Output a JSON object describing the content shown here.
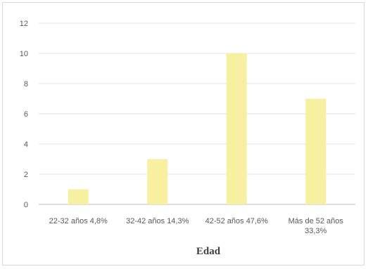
{
  "chart_data": {
    "type": "bar",
    "categories": [
      [
        "22-32 años 4,8%"
      ],
      [
        "32-42 años 14,3%"
      ],
      [
        "42-52 años 47,6%"
      ],
      [
        "Más de 52 años",
        "33,3%"
      ]
    ],
    "values": [
      1,
      3,
      10,
      7
    ],
    "xlabel": "Edad",
    "ylabel": "",
    "ylim": [
      0,
      12
    ],
    "yticks": [
      0,
      2,
      4,
      6,
      8,
      10,
      12
    ],
    "grid": true,
    "bar_color": "#f7f0a0"
  }
}
